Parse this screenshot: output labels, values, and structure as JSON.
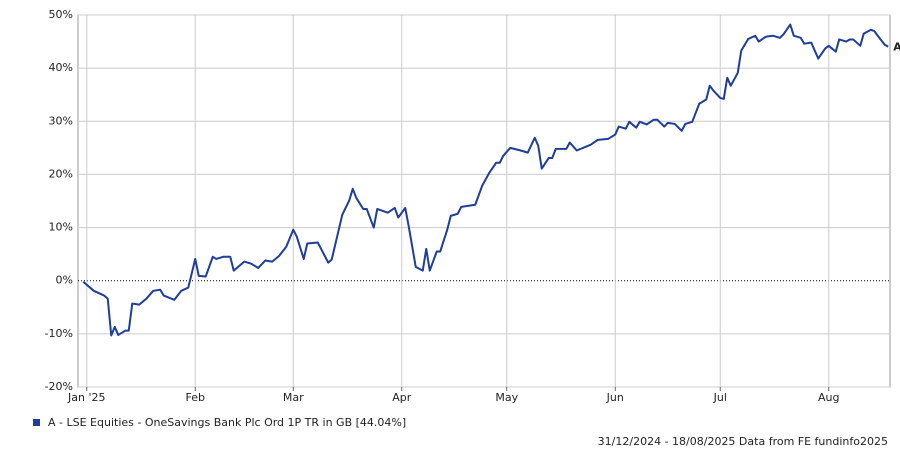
{
  "chart_data": {
    "type": "line",
    "x": [
      0,
      3,
      6,
      7,
      8,
      9,
      10,
      12,
      13,
      14,
      16,
      18,
      20,
      22,
      23,
      26,
      28,
      30,
      32,
      33,
      35,
      37,
      38,
      40,
      42,
      43,
      46,
      48,
      50,
      52,
      54,
      56,
      58,
      60,
      61,
      63,
      64,
      67,
      70,
      71,
      74,
      76,
      77,
      78,
      80,
      81,
      83,
      84,
      87,
      89,
      90,
      92,
      93,
      95,
      97,
      98,
      99,
      101,
      102,
      104,
      105,
      107,
      108,
      112,
      114,
      116,
      118,
      119,
      120,
      122,
      125,
      127,
      129,
      130,
      131,
      133,
      134,
      135,
      138,
      139,
      141,
      145,
      147,
      150,
      152,
      153,
      155,
      156,
      158,
      159,
      161,
      163,
      164,
      166,
      167,
      169,
      171,
      172,
      174,
      176,
      178,
      179,
      180,
      182,
      183,
      184,
      185,
      187,
      188,
      190,
      192,
      193,
      195,
      197,
      199,
      200,
      202,
      203,
      205,
      206,
      208,
      209,
      210,
      212,
      213,
      215,
      216,
      218,
      219,
      220,
      222,
      223,
      225,
      226,
      227,
      229,
      230
    ],
    "series": [
      {
        "name": "A - LSE Equities - OneSavings Bank Plc Ord 1P TR in GB [44.04%]",
        "marker_label": "A",
        "color": "#1f3d99",
        "values": [
          -0.2,
          -1.9,
          -2.8,
          -3.4,
          -10.3,
          -8.7,
          -10.2,
          -9.4,
          -9.4,
          -4.3,
          -4.5,
          -3.4,
          -1.9,
          -1.7,
          -2.8,
          -3.6,
          -1.9,
          -1.3,
          4.1,
          0.9,
          0.8,
          4.5,
          4.1,
          4.5,
          4.5,
          1.9,
          3.6,
          3.2,
          2.4,
          3.8,
          3.6,
          4.7,
          6.4,
          9.6,
          8.3,
          4.1,
          7.0,
          7.2,
          3.4,
          4.0,
          12.4,
          15.1,
          17.3,
          15.6,
          13.5,
          13.5,
          10.0,
          13.5,
          12.8,
          13.7,
          11.9,
          13.7,
          10.2,
          2.6,
          1.9,
          6.0,
          1.9,
          5.5,
          5.5,
          9.6,
          12.2,
          12.6,
          13.9,
          14.3,
          17.9,
          20.3,
          22.2,
          22.2,
          23.5,
          25.0,
          24.5,
          24.1,
          26.9,
          25.4,
          21.1,
          23.1,
          23.1,
          24.8,
          24.8,
          26.0,
          24.5,
          25.6,
          26.5,
          26.7,
          27.5,
          29.0,
          28.6,
          29.9,
          28.8,
          29.9,
          29.4,
          30.3,
          30.3,
          29.0,
          29.7,
          29.5,
          28.2,
          29.5,
          29.9,
          33.3,
          34.1,
          36.7,
          35.8,
          34.4,
          34.2,
          38.2,
          36.7,
          39.1,
          43.3,
          45.5,
          46.1,
          45.0,
          45.9,
          46.1,
          45.7,
          46.3,
          48.2,
          46.1,
          45.7,
          44.6,
          44.8,
          43.3,
          41.8,
          43.7,
          44.2,
          43.1,
          45.4,
          45.0,
          45.4,
          45.4,
          44.2,
          46.5,
          47.2,
          47.0,
          46.1,
          44.4,
          44.04
        ]
      }
    ],
    "xlim": [
      -1.5,
      230.5
    ],
    "xticks": [
      {
        "value": 1,
        "label": "Jan '25"
      },
      {
        "value": 32,
        "label": "Feb"
      },
      {
        "value": 60,
        "label": "Mar"
      },
      {
        "value": 91,
        "label": "Apr"
      },
      {
        "value": 121,
        "label": "May"
      },
      {
        "value": 152,
        "label": "Jun"
      },
      {
        "value": 182,
        "label": "Jul"
      },
      {
        "value": 213,
        "label": "Aug"
      }
    ],
    "ylim": [
      -20,
      50
    ],
    "yticks": [
      {
        "value": -20,
        "label": "-20%"
      },
      {
        "value": -10,
        "label": "-10%"
      },
      {
        "value": 0,
        "label": "0%"
      },
      {
        "value": 10,
        "label": "10%"
      },
      {
        "value": 20,
        "label": "20%"
      },
      {
        "value": 30,
        "label": "30%"
      },
      {
        "value": 40,
        "label": "40%"
      },
      {
        "value": 50,
        "label": "50%"
      }
    ],
    "grid": true,
    "footer": "31/12/2024 - 18/08/2025 Data from FE fundinfo2025"
  }
}
